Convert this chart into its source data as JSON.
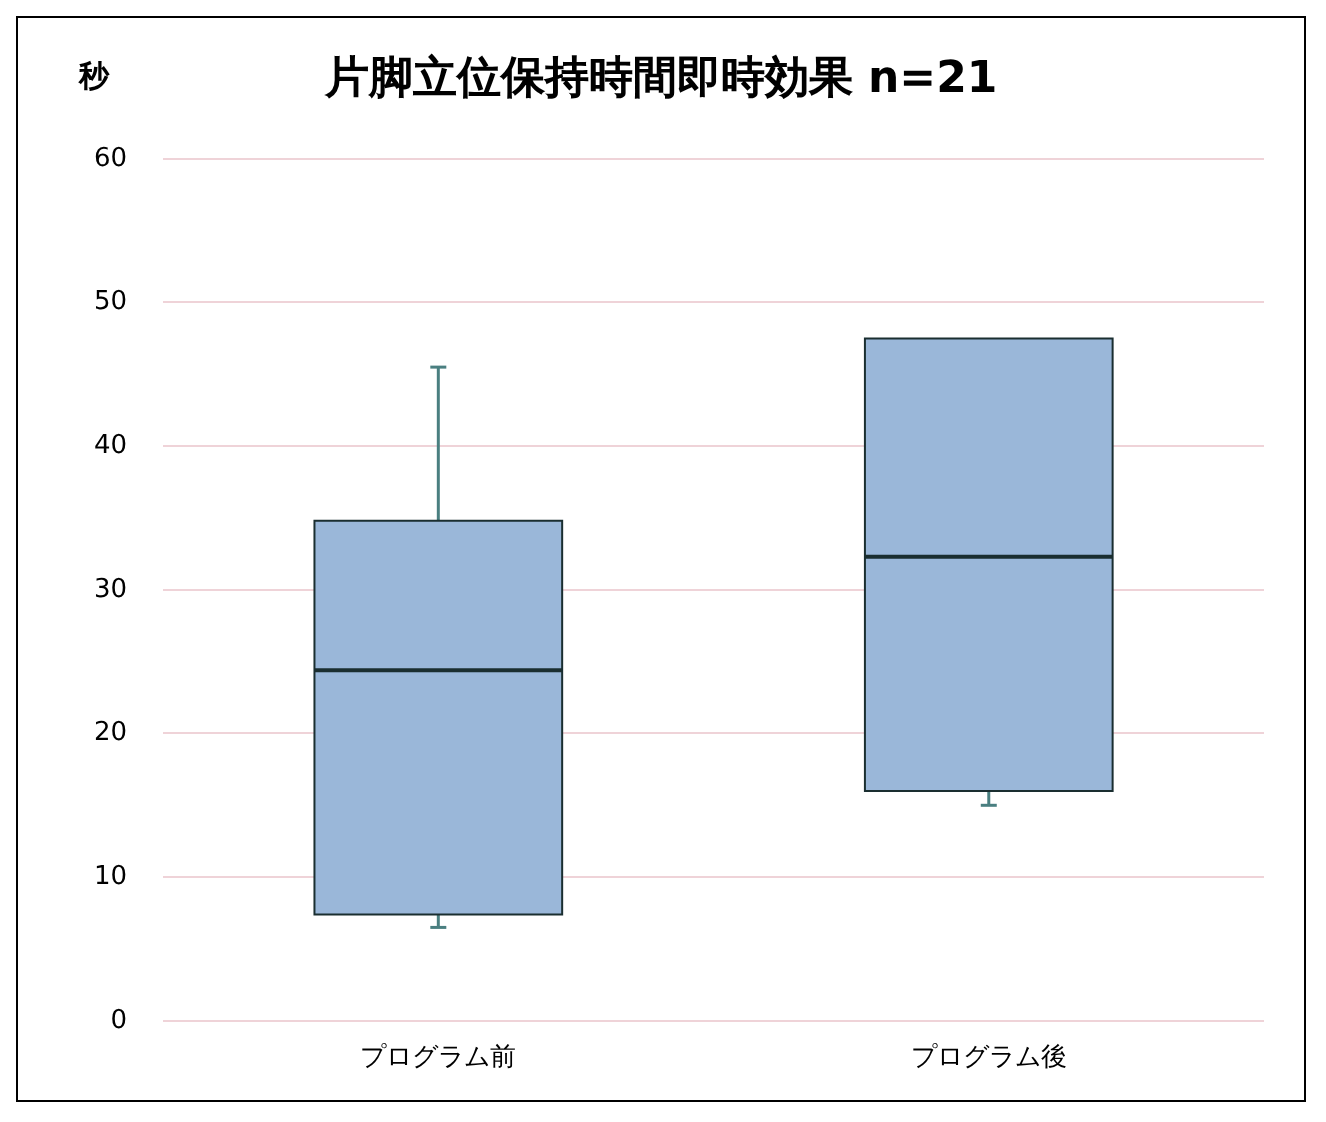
{
  "chart_data": {
    "type": "box",
    "title": "片脚立位保持時間即時効果 n=21",
    "ylabel": "秒",
    "categories": [
      "プログラム前",
      "プログラム後"
    ],
    "boxes": [
      {
        "low": 6.5,
        "q1": 7.4,
        "median": 24.4,
        "q3": 34.8,
        "high": 45.5
      },
      {
        "low": 15,
        "q1": 16,
        "median": 32.3,
        "q3": 47.5,
        "high": 47.5
      }
    ],
    "color": "#9ab7d9",
    "ylim": [
      0,
      60
    ],
    "yticks": [
      0,
      10,
      20,
      30,
      40,
      50,
      60
    ],
    "grid": "y"
  }
}
